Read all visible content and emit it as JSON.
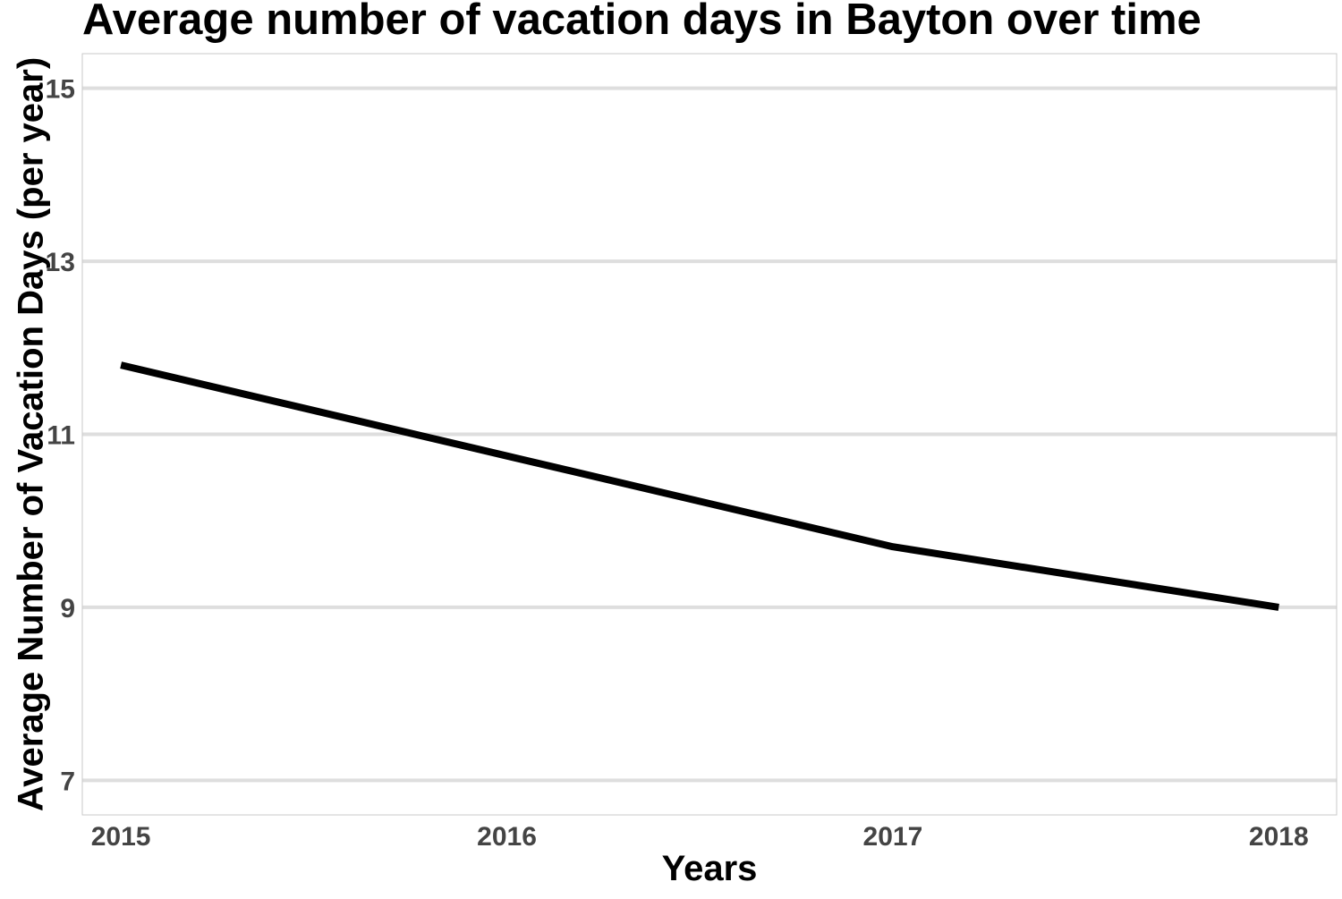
{
  "chart_data": {
    "type": "line",
    "title": "Average number of vacation days in Bayton over time",
    "xlabel": "Years",
    "ylabel": "Average Number of Vacation Days (per year)",
    "x": [
      2015,
      2016,
      2017,
      2018
    ],
    "series": [
      {
        "values": [
          11.8,
          10.75,
          9.7,
          9.0
        ]
      }
    ],
    "xlim": [
      2014.9,
      2018.15
    ],
    "ylim": [
      6.6,
      15.4
    ],
    "x_ticks": [
      2015,
      2016,
      2017,
      2018
    ],
    "y_ticks": [
      7,
      9,
      11,
      13,
      15
    ],
    "grid": "horizontal",
    "colors": {
      "line": "#000000",
      "grid": "#dedede",
      "panel_border": "#c8c8c8",
      "tick_label": "#444444",
      "axis_label": "#000000"
    }
  }
}
